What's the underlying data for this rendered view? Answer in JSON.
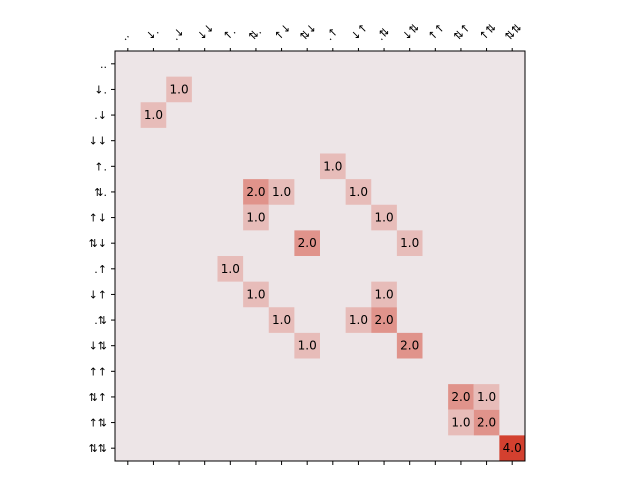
{
  "chart_data": {
    "type": "heatmap",
    "title": "",
    "xlabel": "",
    "ylabel": "",
    "x_labels": [
      "..",
      "↓.",
      ".↓",
      "↓↓",
      "↑.",
      "⇅.",
      "↑↓",
      "⇅↓",
      ".↑",
      "↓↑",
      ".⇅",
      "↓⇅",
      "↑↑",
      "⇅↑",
      "↑⇅",
      "⇅⇅"
    ],
    "y_labels": [
      "..",
      "↓.",
      ".↓",
      "↓↓",
      "↑.",
      "⇅.",
      "↑↓",
      "⇅↓",
      ".↑",
      "↓↑",
      ".⇅",
      "↓⇅",
      "↑↑",
      "⇅↑",
      "↑⇅",
      "⇅⇅"
    ],
    "value_range": [
      0,
      4
    ],
    "colormap": {
      "low": "#ede5e7",
      "high": "#d3402f"
    },
    "cells": [
      {
        "row": 1,
        "col": 2,
        "value": 1.0,
        "label": "1.0"
      },
      {
        "row": 2,
        "col": 1,
        "value": 1.0,
        "label": "1.0"
      },
      {
        "row": 4,
        "col": 8,
        "value": 1.0,
        "label": "1.0"
      },
      {
        "row": 5,
        "col": 5,
        "value": 2.0,
        "label": "2.0"
      },
      {
        "row": 5,
        "col": 6,
        "value": 1.0,
        "label": "1.0"
      },
      {
        "row": 5,
        "col": 9,
        "value": 1.0,
        "label": "1.0"
      },
      {
        "row": 6,
        "col": 5,
        "value": 1.0,
        "label": "1.0"
      },
      {
        "row": 6,
        "col": 10,
        "value": 1.0,
        "label": "1.0"
      },
      {
        "row": 7,
        "col": 7,
        "value": 2.0,
        "label": "2.0"
      },
      {
        "row": 7,
        "col": 11,
        "value": 1.0,
        "label": "1.0"
      },
      {
        "row": 8,
        "col": 4,
        "value": 1.0,
        "label": "1.0"
      },
      {
        "row": 9,
        "col": 5,
        "value": 1.0,
        "label": "1.0"
      },
      {
        "row": 9,
        "col": 10,
        "value": 1.0,
        "label": "1.0"
      },
      {
        "row": 10,
        "col": 6,
        "value": 1.0,
        "label": "1.0"
      },
      {
        "row": 10,
        "col": 9,
        "value": 1.0,
        "label": "1.0"
      },
      {
        "row": 10,
        "col": 10,
        "value": 2.0,
        "label": "2.0"
      },
      {
        "row": 11,
        "col": 7,
        "value": 1.0,
        "label": "1.0"
      },
      {
        "row": 11,
        "col": 11,
        "value": 2.0,
        "label": "2.0"
      },
      {
        "row": 13,
        "col": 13,
        "value": 2.0,
        "label": "2.0"
      },
      {
        "row": 13,
        "col": 14,
        "value": 1.0,
        "label": "1.0"
      },
      {
        "row": 14,
        "col": 13,
        "value": 1.0,
        "label": "1.0"
      },
      {
        "row": 14,
        "col": 14,
        "value": 2.0,
        "label": "2.0"
      },
      {
        "row": 15,
        "col": 15,
        "value": 4.0,
        "label": "4.0"
      }
    ],
    "grid": false,
    "legend": "none"
  }
}
